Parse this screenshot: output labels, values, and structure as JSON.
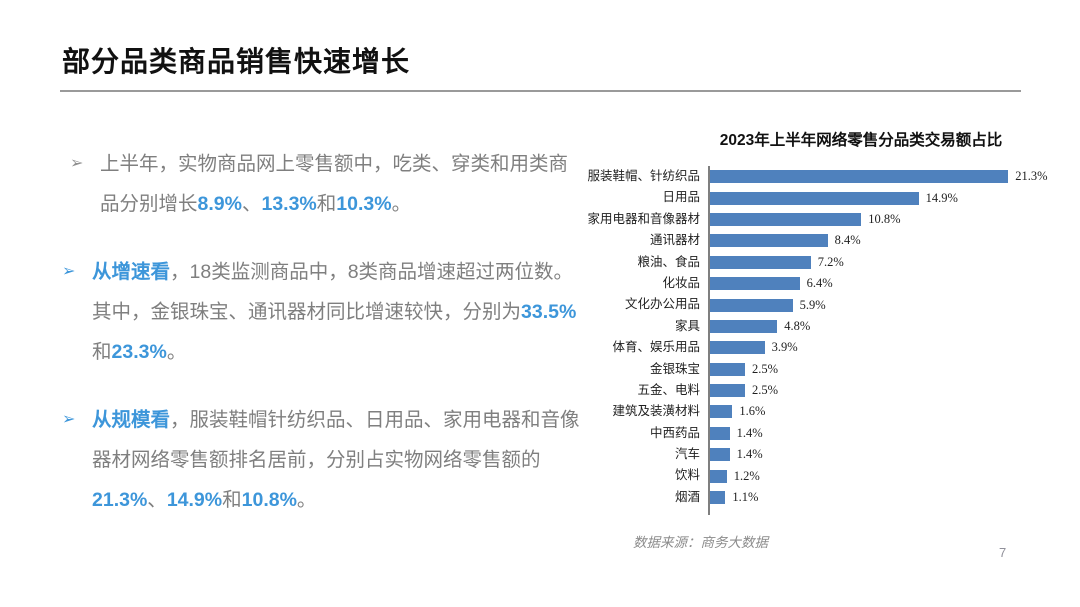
{
  "slide": {
    "title": "部分品类商品销售快速增长"
  },
  "footer": {
    "source_note": "数据来源：商务大数据",
    "page_number": "7"
  },
  "colors": {
    "accent_blue": "#3d96da",
    "bar_blue": "#4f81bd",
    "body_gray": "#7f7f7f",
    "title_black": "#111111",
    "divider_gray": "#9a9a9a",
    "axis_gray": "#7f7f7f"
  },
  "bullets": [
    {
      "marker": "➢",
      "accent_marker": false,
      "indent": true,
      "segments": [
        {
          "text": "上半年，实物商品网上零售额中，吃类、穿类和用类商品分别增长",
          "accent": false
        },
        {
          "text": "8.9%",
          "accent": true
        },
        {
          "text": "、",
          "accent": false
        },
        {
          "text": "13.3%",
          "accent": true
        },
        {
          "text": "和",
          "accent": false
        },
        {
          "text": "10.3%",
          "accent": true
        },
        {
          "text": "。",
          "accent": false
        }
      ]
    },
    {
      "marker": "➢",
      "accent_marker": true,
      "indent": false,
      "segments": [
        {
          "text": "从增速看",
          "accent": true
        },
        {
          "text": "，18类监测商品中，8类商品增速超过两位数。其中，金银珠宝、通讯器材同比增速较快，分别为",
          "accent": false
        },
        {
          "text": "33.5%",
          "accent": true
        },
        {
          "text": "和",
          "accent": false
        },
        {
          "text": "23.3%",
          "accent": true
        },
        {
          "text": "。",
          "accent": false
        }
      ]
    },
    {
      "marker": "➢",
      "accent_marker": true,
      "indent": false,
      "segments": [
        {
          "text": "从规模看",
          "accent": true
        },
        {
          "text": "，服装鞋帽针纺织品、日用品、家用电器和音像器材网络零售额排名居前，分别占实物网络零售额的",
          "accent": false
        },
        {
          "text": "21.3%",
          "accent": true
        },
        {
          "text": "、",
          "accent": false
        },
        {
          "text": "14.9%",
          "accent": true
        },
        {
          "text": "和",
          "accent": false
        },
        {
          "text": "10.8%",
          "accent": true
        },
        {
          "text": "。",
          "accent": false
        }
      ]
    }
  ],
  "chart_data": {
    "type": "bar",
    "orientation": "horizontal",
    "title": "2023年上半年网络零售分品类交易额占比",
    "categories": [
      "服装鞋帽、针纺织品",
      "日用品",
      "家用电器和音像器材",
      "通讯器材",
      "粮油、食品",
      "化妆品",
      "文化办公用品",
      "家具",
      "体育、娱乐用品",
      "金银珠宝",
      "五金、电料",
      "建筑及装潢材料",
      "中西药品",
      "汽车",
      "饮料",
      "烟酒"
    ],
    "values": [
      21.3,
      14.9,
      10.8,
      8.4,
      7.2,
      6.4,
      5.9,
      4.8,
      3.9,
      2.5,
      2.5,
      1.6,
      1.4,
      1.4,
      1.2,
      1.1
    ],
    "value_labels": [
      "21.3%",
      "14.9%",
      "10.8%",
      "8.4%",
      "7.2%",
      "6.4%",
      "5.9%",
      "4.8%",
      "3.9%",
      "2.5%",
      "2.5%",
      "1.6%",
      "1.4%",
      "1.4%",
      "1.2%",
      "1.1%"
    ],
    "xlabel": "",
    "ylabel": "",
    "xlim": [
      0,
      22.5
    ],
    "grid": false,
    "legend": false,
    "bar_color": "#4f81bd",
    "value_label_position": "end"
  }
}
